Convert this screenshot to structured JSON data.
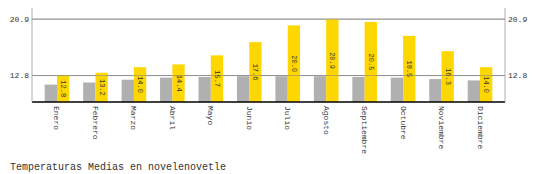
{
  "chart_data": {
    "type": "bar",
    "title": "Temperaturas Medias en novelenovetle",
    "categories": [
      "Enero",
      "Febrero",
      "Marzo",
      "Abril",
      "Mayo",
      "Junio",
      "Julio",
      "Agosto",
      "Septiembre",
      "Octubre",
      "Noviembre",
      "Diciembre"
    ],
    "series": [
      {
        "color": "#B0B0B0",
        "values": [
          11.5,
          11.8,
          12.2,
          12.5,
          12.6,
          12.7,
          12.7,
          12.7,
          12.6,
          12.5,
          12.3,
          12.1
        ]
      },
      {
        "color": "#FFD700",
        "values": [
          12.8,
          13.2,
          14.0,
          14.4,
          15.7,
          17.6,
          20.0,
          20.9,
          20.5,
          18.5,
          16.3,
          14.0
        ],
        "data_labels": true,
        "value_labels": [
          "12.8",
          "13.2",
          "14.0",
          "14.4",
          "15.7",
          "17.6",
          "20.0",
          "20.9",
          "20.5",
          "18.5",
          "16.3",
          "14.0"
        ]
      }
    ],
    "ylim": [
      9.0,
      22.5
    ],
    "yticks": [
      12.8,
      20.9
    ],
    "y2lim": [
      9.0,
      22.5
    ],
    "y2ticks": [
      12.8,
      20.9
    ],
    "grid": true
  }
}
